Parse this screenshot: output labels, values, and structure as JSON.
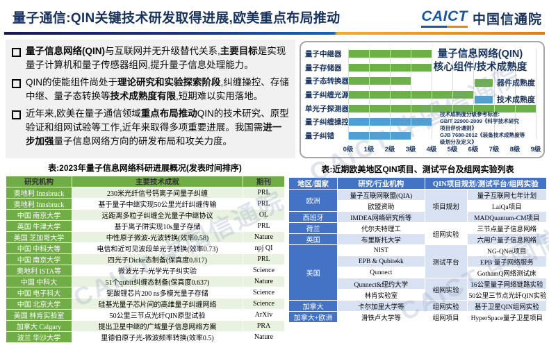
{
  "header": {
    "title": "量子通信:QIN关键技术研发取得进展,欧美重点布局推动",
    "logo_caict": "CAICT",
    "logo_cn": "中国信通院"
  },
  "watermark_text": "CAICT 中国信通院",
  "bullets": [
    {
      "segments": [
        {
          "text": "量子信息网络(QIN)",
          "bold": true
        },
        {
          "text": "与互联网并无升级替代关系,",
          "bold": false
        },
        {
          "text": "主要目标",
          "bold": true
        },
        {
          "text": "是实现量子计算机和量子传感器组网,提升量子信息处理能力。",
          "bold": false
        }
      ]
    },
    {
      "segments": [
        {
          "text": "QIN的使能组件尚处于",
          "bold": false
        },
        {
          "text": "理论研究和实验探索阶段",
          "bold": true
        },
        {
          "text": ",纠缠操控、存储中继、量子态转换等",
          "bold": false
        },
        {
          "text": "技术成熟度有限",
          "bold": true
        },
        {
          "text": ",短期难以实用落地。",
          "bold": false
        }
      ]
    },
    {
      "segments": [
        {
          "text": "近年来,欧美在量子通信领域",
          "bold": false
        },
        {
          "text": "重点布局推动",
          "bold": true
        },
        {
          "text": "QIN的技术研究、原型验证和组网试验等工作,近年来取得多项重要进展。我国需",
          "bold": false
        },
        {
          "text": "进一步加强",
          "bold": true
        },
        {
          "text": "量子信息网络方向的研发布局和攻关力度。",
          "bold": false
        }
      ]
    }
  ],
  "chart_data": {
    "type": "bar",
    "orientation": "horizontal",
    "title_lines": [
      "量子信息网络(QIN)",
      "核心组件/技术成熟度"
    ],
    "categories": [
      "量子中继器",
      "量子存储器",
      "量子态转换器",
      "量子纠缠光源",
      "单光子探测器",
      "量子纠缠操控",
      "量子纠错"
    ],
    "values": [
      4,
      4,
      3,
      6,
      9,
      4,
      3
    ],
    "series_of_bar": [
      "器件成熟度",
      "器件成熟度",
      "器件成熟度",
      "器件成熟度",
      "器件成熟度",
      "技术成熟度",
      "技术成熟度"
    ],
    "legend": [
      {
        "label": "器件成熟度",
        "color": "#6CB148"
      },
      {
        "label": "技术成熟度",
        "color": "#4E9FD4"
      }
    ],
    "xlim": [
      0,
      9
    ],
    "xticks": [
      "0级",
      "1级",
      "2级",
      "3级",
      "4级",
      "5级",
      "6级",
      "7级",
      "8级",
      "9级"
    ],
    "grid": true,
    "legend_position": "right",
    "note_lines": [
      "技术成熟度分级参考标准:",
      "GB/T 22900-2009《科学技术研究",
      "项目评价通则》",
      "GJB 7688-2012《装备技术成熟度等",
      "级划分及定义》"
    ]
  },
  "left_table": {
    "title": "表:2023年量子信息网络科研进展概况(发表时间排序)",
    "headers": [
      "研究机构",
      "主要技术成就",
      "期刊"
    ],
    "rows": [
      [
        "奥地利 Innsbruck",
        "230米光纤信号钙离子间量子纠缠",
        "PRL"
      ],
      [
        "奥地利 Innsbruck",
        "基于量子中继实现50公里光纤纠缠传输",
        "PRL"
      ],
      [
        "中国 南京大学",
        "远距离多粒子纠缠全光量子中继协议",
        "OL"
      ],
      [
        "英国 牛津大学",
        "基于离子阱实现10s量子存储",
        "PRL"
      ],
      [
        "美国 芝加哥大学",
        "中性原子微波-光波转换(效率0.58)",
        "Nature"
      ],
      [
        "中国 中科大等",
        "电信和近可见波段单光子转换(效率0.73)",
        "npj QI"
      ],
      [
        "中国 南京大学",
        "四光子Dicke态制备(保真度0.817)",
        "PRL"
      ],
      [
        "奥地利 ISTA等",
        "微波光子-光学光子纠实验",
        "Science"
      ],
      [
        "中国 中科大",
        "51个qubit纠缠态制备(保真度0.637)",
        "Nature"
      ],
      [
        "中国 电子科大",
        "铌酸锂芯片200 ns多模光量子存储",
        "Science"
      ],
      [
        "中国 北京大学",
        "硅基光量子芯片间的高维量子纠缠网络",
        "Science"
      ],
      [
        "美国 林肯实验室",
        "50公里三节点光纤QIN原型试验",
        "ArXiv"
      ],
      [
        "加拿大 Calgary",
        "提出卫星中继的广域量子信息网络方案",
        "PRA"
      ],
      [
        "波兰 华沙大学",
        "里德伯原子光-微波频率转换(效率0.5)",
        "Nature"
      ]
    ]
  },
  "right_table": {
    "title": "表:近期欧美地区QIN项目、测试平台及组网实验列表",
    "headers": [
      {
        "text": "地区/国家",
        "colspan": 1
      },
      {
        "text": "研究/行业机构",
        "colspan": 1
      },
      {
        "text": "QIN项目规划/测试平台/组网实验",
        "colspan": 2
      }
    ],
    "rows": [
      {
        "region": {
          "text": "欧洲",
          "rowspan": 2
        },
        "org": "量子互联网联盟(QIA)",
        "category": {
          "text": "项目规划",
          "rowspan": 3,
          "shade": "light"
        },
        "project": "量子互联网七年计划"
      },
      {
        "org": "欧盟资助",
        "project": "LaiQa项目"
      },
      {
        "region": {
          "text": "西班牙",
          "rowspan": 1
        },
        "org": "IMDEA网络研究所等",
        "project": "MADQuantum-CM项目"
      },
      {
        "region": {
          "text": "荷兰",
          "rowspan": 1
        },
        "org": "代尔夫特理工",
        "category": {
          "text": "组网实验",
          "rowspan": 2,
          "shade": "white"
        },
        "project": "三节点量子信息网络"
      },
      {
        "region": {
          "text": "英国",
          "rowspan": 1
        },
        "org": "布里斯托大学",
        "project": "六用户量子信息网络"
      },
      {
        "region": {
          "text": "美国",
          "rowspan": 5
        },
        "org": "NIST",
        "category": {
          "text": "测试平台",
          "rowspan": 3,
          "shade": "light"
        },
        "project": "NG-QNet项目"
      },
      {
        "org": "EPB & Qubitekk",
        "project": "EPB 量子网络服务"
      },
      {
        "org": "Qunnect",
        "project": "GothamQ网络测试床"
      },
      {
        "org": "Qunnect&纽约大学",
        "category": {
          "text": "组网实验",
          "rowspan": 2,
          "shade": "light"
        },
        "project": "16公里量子网络链路实验"
      },
      {
        "org": "林肯实验室",
        "project": "50公里三节点光纤QIN实验"
      },
      {
        "region": {
          "text": "加拿大",
          "rowspan": 1
        },
        "org": "卡尔加里大学等",
        "category": {
          "text": "组网实验",
          "rowspan": 1,
          "shade": "light"
        },
        "project": "基于卫星QIN组网实验"
      },
      {
        "region": {
          "text": "加拿大+欧洲",
          "rowspan": 1
        },
        "org": "滑铁卢大学等",
        "category": {
          "text": "组网项目",
          "rowspan": 1,
          "shade": "white"
        },
        "project": "HyperSpace量子卫星项目"
      }
    ]
  },
  "colors": {
    "title_navy": "#17325F",
    "bar_green": "#6CB148",
    "bar_blue": "#4E9FD4",
    "table_green_header": "#71AD47",
    "table_green_light": "#E9F2E1",
    "table_blue_header": "#4472C4",
    "table_blue_light": "#D9E2F3",
    "divider_navy": "#15155F",
    "divider_blue": "#0C66C2",
    "divider_orange": "#EC7A08"
  }
}
